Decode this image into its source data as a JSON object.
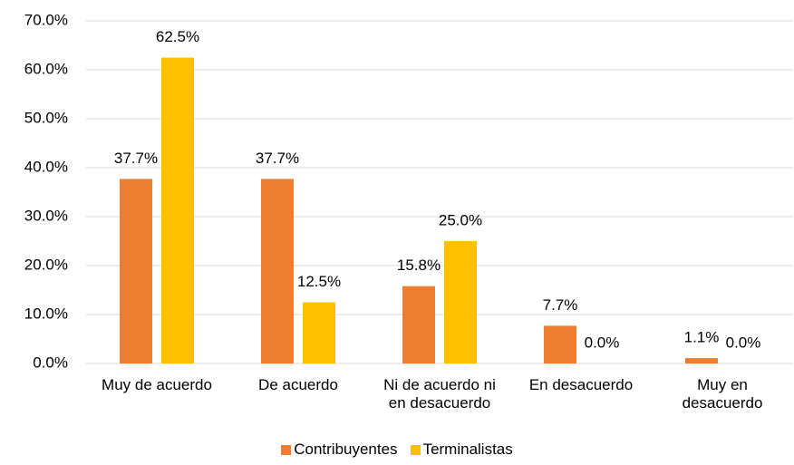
{
  "chart_data": {
    "type": "bar",
    "categories": [
      "Muy de acuerdo",
      "De acuerdo",
      "Ni de acuerdo ni\nen desacuerdo",
      "En desacuerdo",
      "Muy en\ndesacuerdo"
    ],
    "series": [
      {
        "name": "Contribuyentes",
        "color": "#ED7D31",
        "values": [
          37.7,
          37.7,
          15.8,
          7.7,
          1.1
        ],
        "value_labels": [
          "37.7%",
          "37.7%",
          "15.8%",
          "7.7%",
          "1.1%"
        ]
      },
      {
        "name": "Terminalistas",
        "color": "#FFC000",
        "values": [
          62.5,
          12.5,
          25.0,
          0.0,
          0.0
        ],
        "value_labels": [
          "62.5%",
          "12.5%",
          "25.0%",
          "0.0%",
          "0.0%"
        ]
      }
    ],
    "ylim": [
      0,
      70
    ],
    "yticks": [
      {
        "value": 0,
        "label": "0.0%"
      },
      {
        "value": 10,
        "label": "10.0%"
      },
      {
        "value": 20,
        "label": "20.0%"
      },
      {
        "value": 30,
        "label": "30.0%"
      },
      {
        "value": 40,
        "label": "40.0%"
      },
      {
        "value": 50,
        "label": "50.0%"
      },
      {
        "value": 60,
        "label": "60.0%"
      },
      {
        "value": 70,
        "label": "70.0%"
      }
    ],
    "grid": true,
    "legend": "bottom"
  }
}
